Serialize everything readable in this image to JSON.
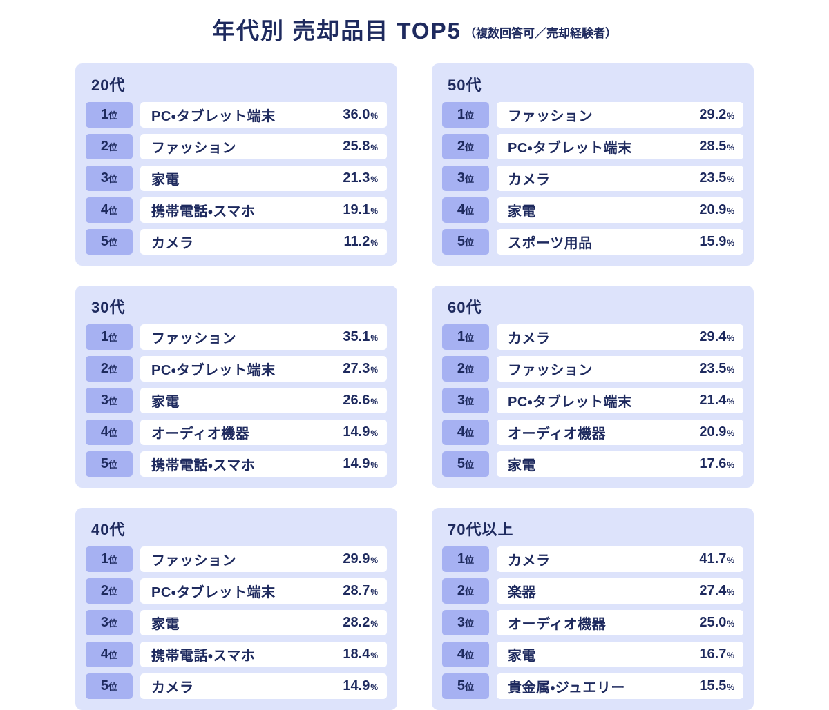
{
  "title": {
    "main": "年代別 売却品目 TOP5",
    "note": "（複数回答可／売却経験者）"
  },
  "labels": {
    "rank_suffix": "位",
    "percent_suffix": "%"
  },
  "colors": {
    "page_bg": "#ffffff",
    "panel_bg": "#dde3fb",
    "badge_bg": "#a6b1f2",
    "row_bg": "#ffffff",
    "text_navy": "#1e2a5e"
  },
  "chart_data": {
    "type": "table",
    "title": "年代別 売却品目 TOP5（複数回答可／売却経験者）",
    "unit": "%",
    "groups": [
      {
        "age_group": "20代",
        "ranking": [
          {
            "rank": 1,
            "item": "PC・タブレット端末",
            "percent": 36.0,
            "percent_label": "36.0"
          },
          {
            "rank": 2,
            "item": "ファッション",
            "percent": 25.8,
            "percent_label": "25.8"
          },
          {
            "rank": 3,
            "item": "家電",
            "percent": 21.3,
            "percent_label": "21.3"
          },
          {
            "rank": 4,
            "item": "携帯電話・スマホ",
            "percent": 19.1,
            "percent_label": "19.1"
          },
          {
            "rank": 5,
            "item": "カメラ",
            "percent": 11.2,
            "percent_label": "11.2"
          }
        ]
      },
      {
        "age_group": "50代",
        "ranking": [
          {
            "rank": 1,
            "item": "ファッション",
            "percent": 29.2,
            "percent_label": "29.2"
          },
          {
            "rank": 2,
            "item": "PC・タブレット端末",
            "percent": 28.5,
            "percent_label": "28.5"
          },
          {
            "rank": 3,
            "item": "カメラ",
            "percent": 23.5,
            "percent_label": "23.5"
          },
          {
            "rank": 4,
            "item": "家電",
            "percent": 20.9,
            "percent_label": "20.9"
          },
          {
            "rank": 5,
            "item": "スポーツ用品",
            "percent": 15.9,
            "percent_label": "15.9"
          }
        ]
      },
      {
        "age_group": "30代",
        "ranking": [
          {
            "rank": 1,
            "item": "ファッション",
            "percent": 35.1,
            "percent_label": "35.1"
          },
          {
            "rank": 2,
            "item": "PC・タブレット端末",
            "percent": 27.3,
            "percent_label": "27.3"
          },
          {
            "rank": 3,
            "item": "家電",
            "percent": 26.6,
            "percent_label": "26.6"
          },
          {
            "rank": 4,
            "item": "オーディオ機器",
            "percent": 14.9,
            "percent_label": "14.9"
          },
          {
            "rank": 5,
            "item": "携帯電話・スマホ",
            "percent": 14.9,
            "percent_label": "14.9"
          }
        ]
      },
      {
        "age_group": "60代",
        "ranking": [
          {
            "rank": 1,
            "item": "カメラ",
            "percent": 29.4,
            "percent_label": "29.4"
          },
          {
            "rank": 2,
            "item": "ファッション",
            "percent": 23.5,
            "percent_label": "23.5"
          },
          {
            "rank": 3,
            "item": "PC・タブレット端末",
            "percent": 21.4,
            "percent_label": "21.4"
          },
          {
            "rank": 4,
            "item": "オーディオ機器",
            "percent": 20.9,
            "percent_label": "20.9"
          },
          {
            "rank": 5,
            "item": "家電",
            "percent": 17.6,
            "percent_label": "17.6"
          }
        ]
      },
      {
        "age_group": "40代",
        "ranking": [
          {
            "rank": 1,
            "item": "ファッション",
            "percent": 29.9,
            "percent_label": "29.9"
          },
          {
            "rank": 2,
            "item": "PC・タブレット端末",
            "percent": 28.7,
            "percent_label": "28.7"
          },
          {
            "rank": 3,
            "item": "家電",
            "percent": 28.2,
            "percent_label": "28.2"
          },
          {
            "rank": 4,
            "item": "携帯電話・スマホ",
            "percent": 18.4,
            "percent_label": "18.4"
          },
          {
            "rank": 5,
            "item": "カメラ",
            "percent": 14.9,
            "percent_label": "14.9"
          }
        ]
      },
      {
        "age_group": "70代以上",
        "ranking": [
          {
            "rank": 1,
            "item": "カメラ",
            "percent": 41.7,
            "percent_label": "41.7"
          },
          {
            "rank": 2,
            "item": "楽器",
            "percent": 27.4,
            "percent_label": "27.4"
          },
          {
            "rank": 3,
            "item": "オーディオ機器",
            "percent": 25.0,
            "percent_label": "25.0"
          },
          {
            "rank": 4,
            "item": "家電",
            "percent": 16.7,
            "percent_label": "16.7"
          },
          {
            "rank": 5,
            "item": "貴金属・ジュエリー",
            "percent": 15.5,
            "percent_label": "15.5"
          }
        ]
      }
    ]
  }
}
